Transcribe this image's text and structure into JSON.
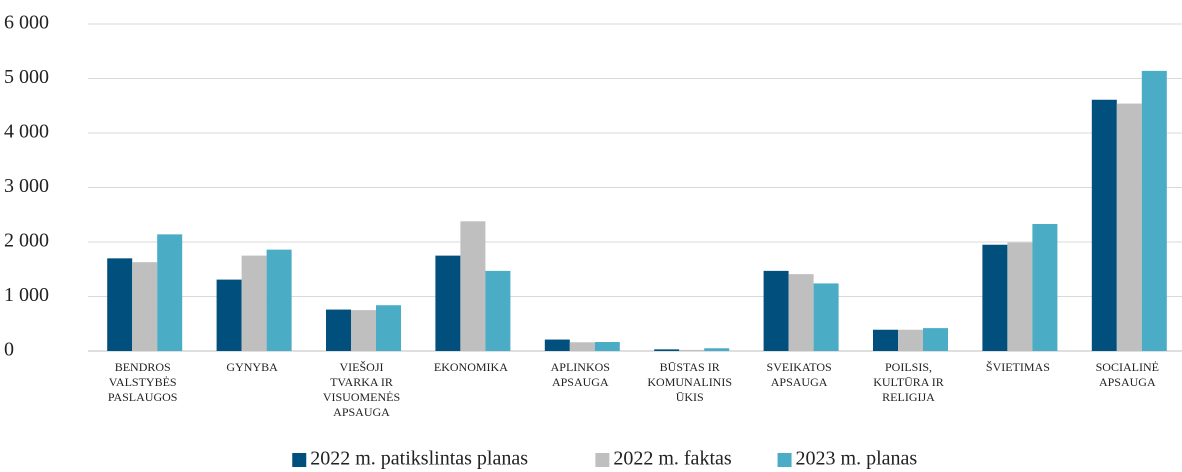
{
  "chart_data": {
    "type": "bar",
    "categories": [
      "BENDROS VALSTYBĖS PASLAUGOS",
      "GYNYBA",
      "VIEŠOJI TVARKA IR VISUOMENĖS APSAUGA",
      "EKONOMIKA",
      "APLINKOS APSAUGA",
      "BŪSTAS IR KOMUNALINIS ŪKIS",
      "SVEIKATOS APSAUGA",
      "POILSIS, KULTŪRA IR RELIGIJA",
      "ŠVIETIMAS",
      "SOCIALINĖ APSAUGA"
    ],
    "series": [
      {
        "name": "2022 m. patikslintas planas",
        "color": "#004f7c",
        "values": [
          1700,
          1310,
          760,
          1750,
          210,
          30,
          1470,
          390,
          1950,
          4610
        ]
      },
      {
        "name": "2022 m. faktas",
        "color": "#bfbfbf",
        "values": [
          1630,
          1750,
          750,
          2380,
          160,
          20,
          1410,
          390,
          1990,
          4540
        ]
      },
      {
        "name": "2023 m. planas",
        "color": "#4bacc6",
        "values": [
          2140,
          1860,
          840,
          1470,
          165,
          50,
          1240,
          420,
          2330,
          5140
        ]
      }
    ],
    "ylim": [
      0,
      6000
    ],
    "yticks": [
      0,
      {
        "value": 1000,
        "label": "1 000"
      },
      {
        "value": 2000,
        "label": "2 000"
      },
      {
        "value": 3000,
        "label": "3 000"
      },
      {
        "value": 4000,
        "label": "4 000"
      },
      {
        "value": 5000,
        "label": "5 000"
      },
      {
        "value": 6000,
        "label": "6 000"
      }
    ],
    "grid": true,
    "legend": "bottom"
  }
}
